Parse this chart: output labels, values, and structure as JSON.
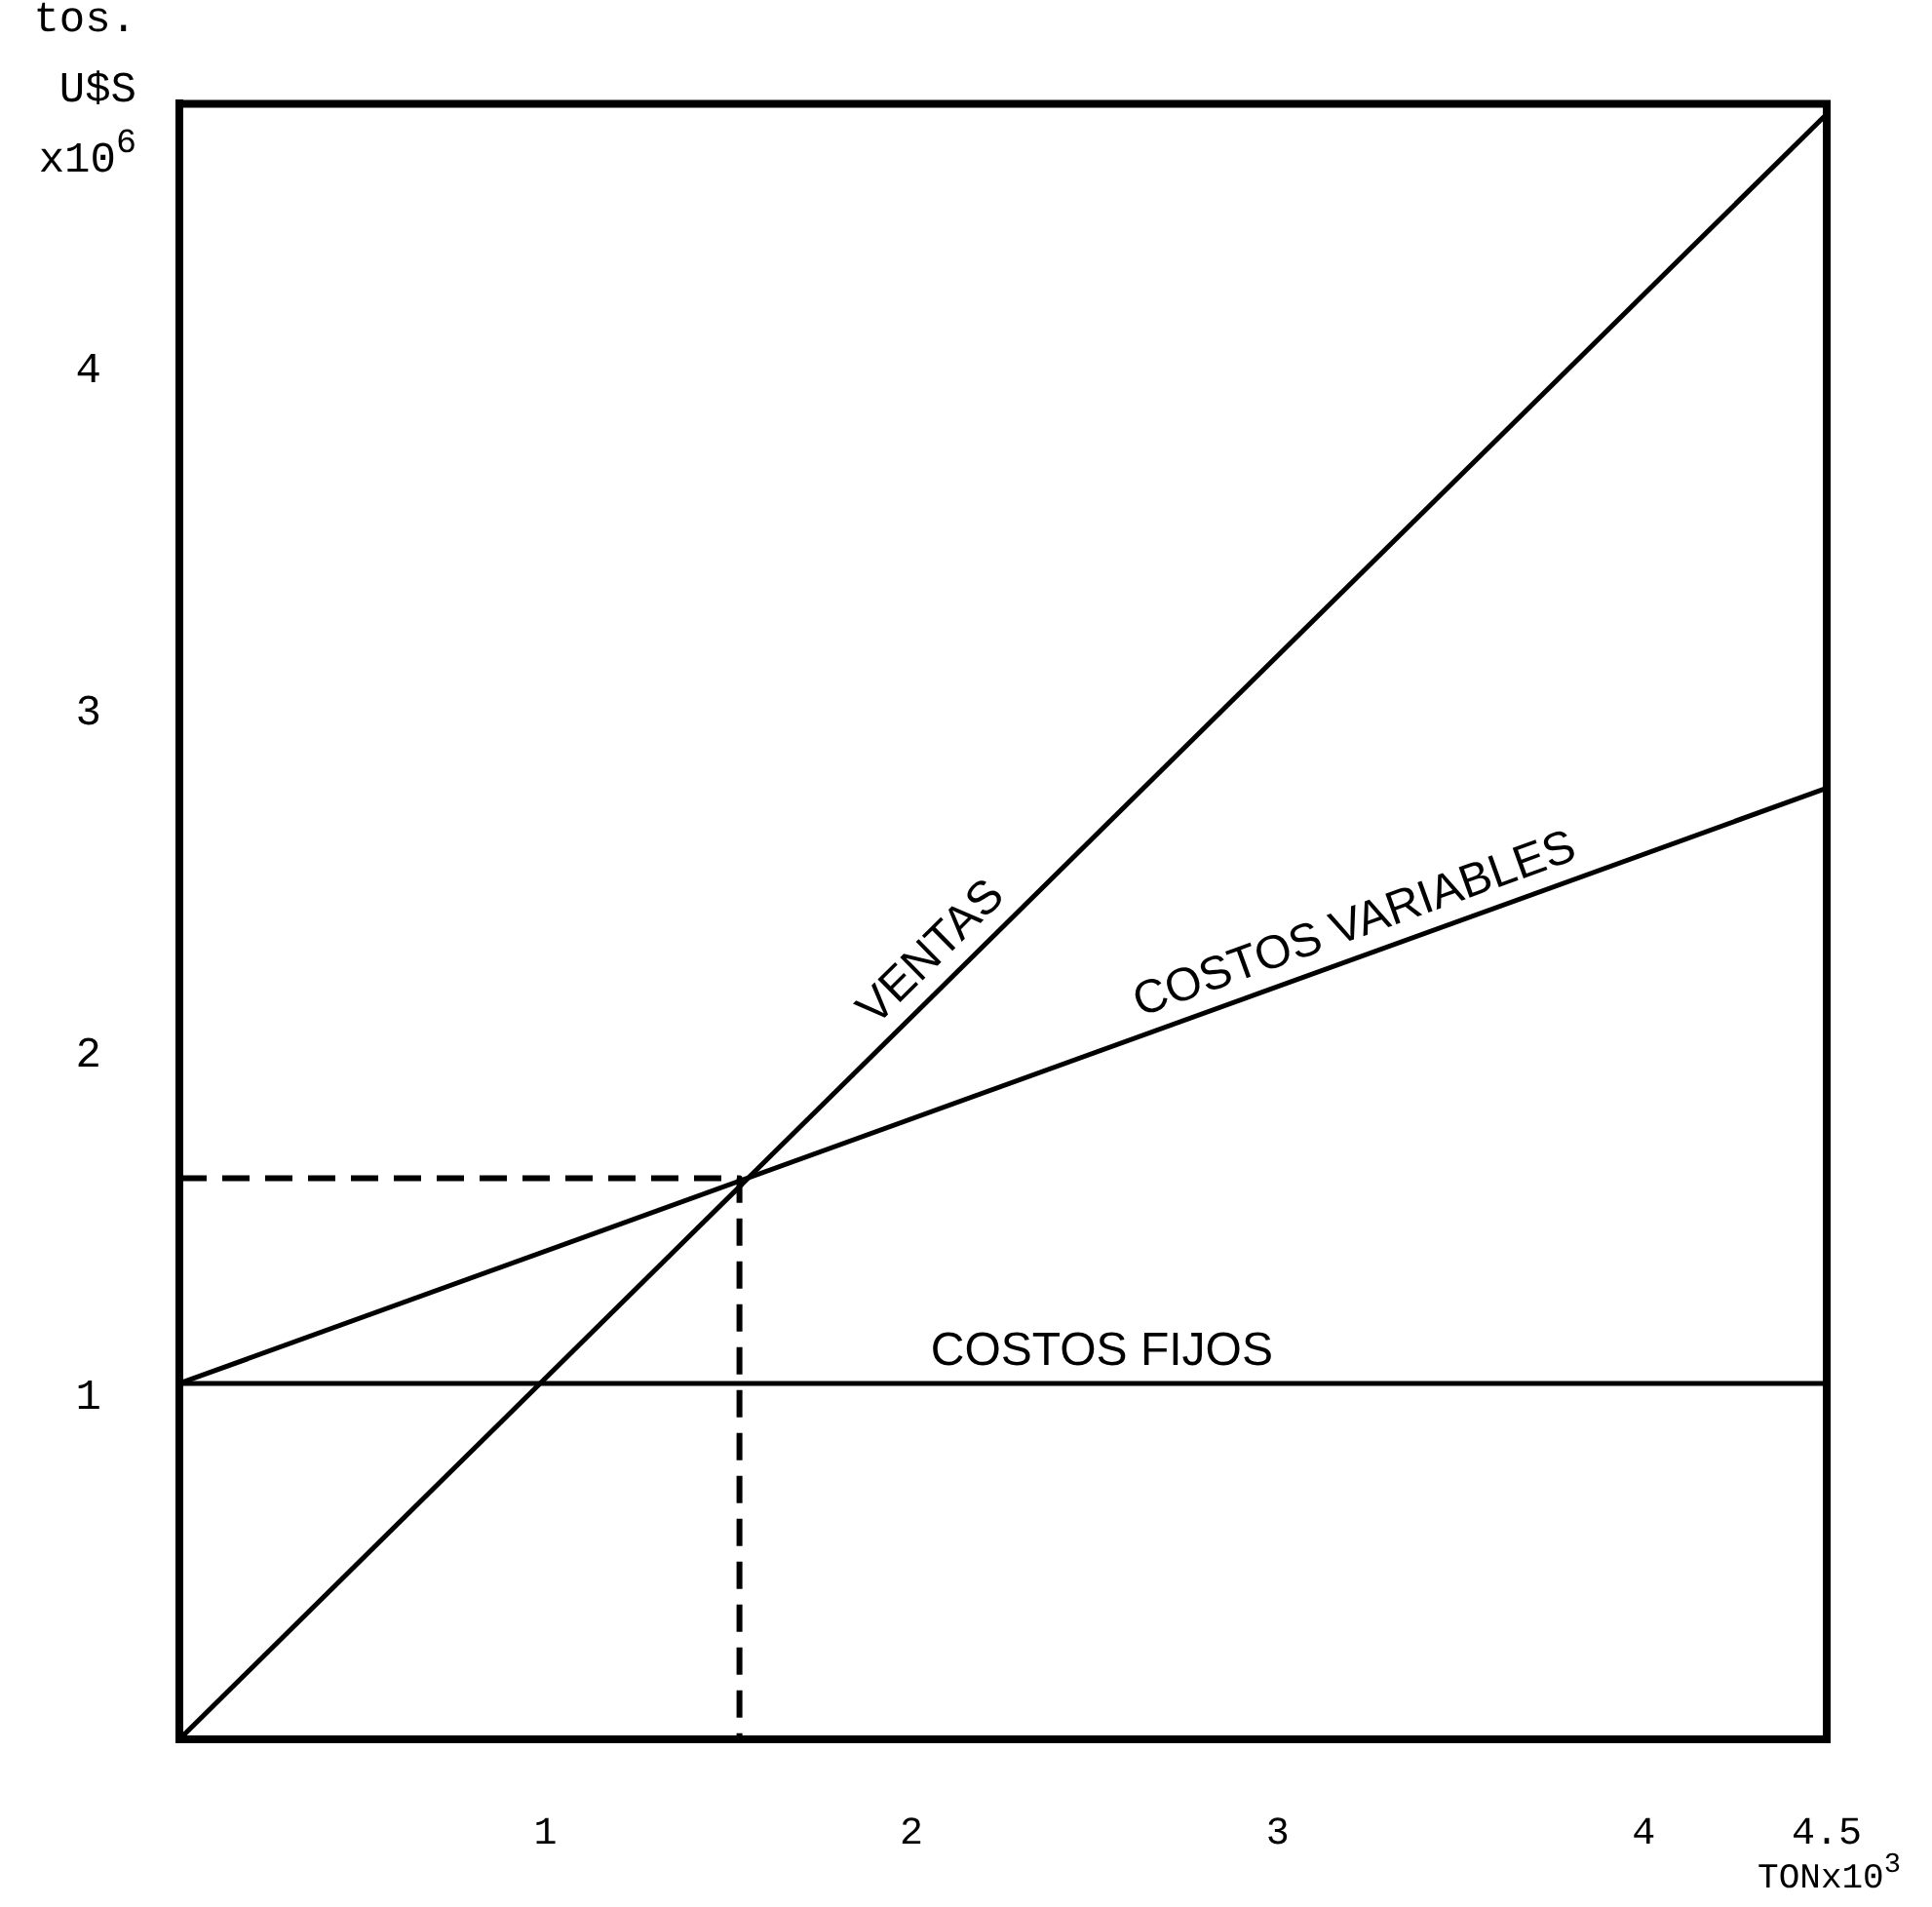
{
  "chart_data": {
    "type": "line",
    "ylabel": "tos. U$S x10$^{6}$",
    "xlabel": "TONx10$^{3}$",
    "xlim": [
      0,
      4.5
    ],
    "ylim": [
      0,
      4.78
    ],
    "xticks": [
      1,
      2,
      3,
      4,
      4.5
    ],
    "yticks": [
      1,
      2,
      3,
      4
    ],
    "grid": false,
    "legend": false,
    "marker": "none",
    "series": [
      {
        "name": "VENTAS",
        "color": "#000000",
        "x": [
          0,
          4.5
        ],
        "values": [
          0,
          4.75
        ]
      },
      {
        "name": "COSTOS VARIABLES",
        "color": "#000000",
        "x": [
          0,
          4.5
        ],
        "values": [
          1.04,
          2.78
        ]
      },
      {
        "name": "COSTOS FIJOS",
        "color": "#000000",
        "x": [
          0,
          4.5
        ],
        "values": [
          1.04,
          1.04
        ]
      },
      {
        "color": "#000000",
        "x": [
          0,
          1.53,
          1.53
        ],
        "values": [
          1.64,
          1.64,
          0
        ],
        "line_style": "dashed"
      }
    ]
  }
}
